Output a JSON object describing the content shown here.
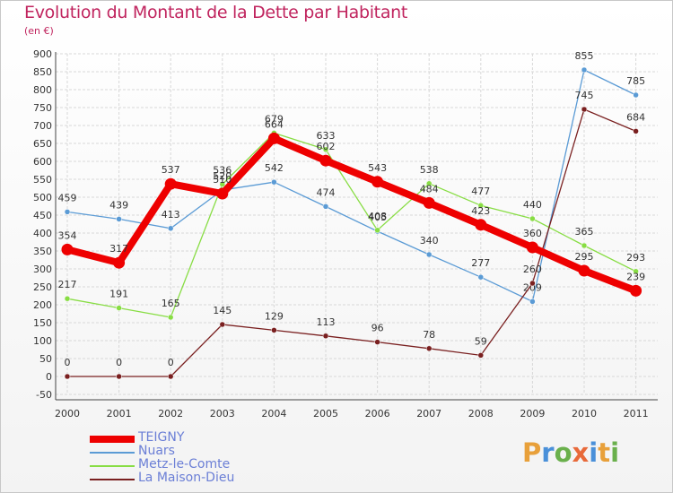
{
  "title": "Evolution du Montant de la Dette par Habitant",
  "subtitle": "(en €)",
  "brand": {
    "text": "Proxiti",
    "letters": [
      "P",
      "r",
      "o",
      "x",
      "i",
      "t",
      "i"
    ],
    "colors": [
      "#e8a03a",
      "#4a90d9",
      "#6ab04c",
      "#e86a3a",
      "#4a90d9",
      "#e8a03a",
      "#6ab04c"
    ]
  },
  "chart_data": {
    "type": "line",
    "x": [
      "2000",
      "2001",
      "2002",
      "2003",
      "2004",
      "2005",
      "2006",
      "2007",
      "2008",
      "2009",
      "2010",
      "2011"
    ],
    "ylim": [
      -50,
      900
    ],
    "yticks": [
      -50,
      0,
      50,
      100,
      150,
      200,
      250,
      300,
      350,
      400,
      450,
      500,
      550,
      600,
      650,
      700,
      750,
      800,
      850,
      900
    ],
    "grid": true,
    "legend_position": "bottom-left",
    "series": [
      {
        "name": "TEIGNY",
        "color": "#ee0000",
        "emphasis": true,
        "values": [
          354,
          317,
          537,
          510,
          664,
          602,
          543,
          484,
          423,
          360,
          295,
          239
        ]
      },
      {
        "name": "Nuars",
        "color": "#5b9bd5",
        "values": [
          459,
          439,
          413,
          520,
          542,
          474,
          405,
          340,
          277,
          209,
          855,
          785
        ]
      },
      {
        "name": "Metz-le-Comte",
        "color": "#88dd44",
        "values": [
          217,
          191,
          165,
          536,
          679,
          633,
          408,
          538,
          477,
          440,
          365,
          293
        ]
      },
      {
        "name": "La Maison-Dieu",
        "color": "#7a2020",
        "values": [
          0,
          0,
          0,
          145,
          129,
          113,
          96,
          78,
          59,
          260,
          745,
          684
        ]
      }
    ]
  }
}
